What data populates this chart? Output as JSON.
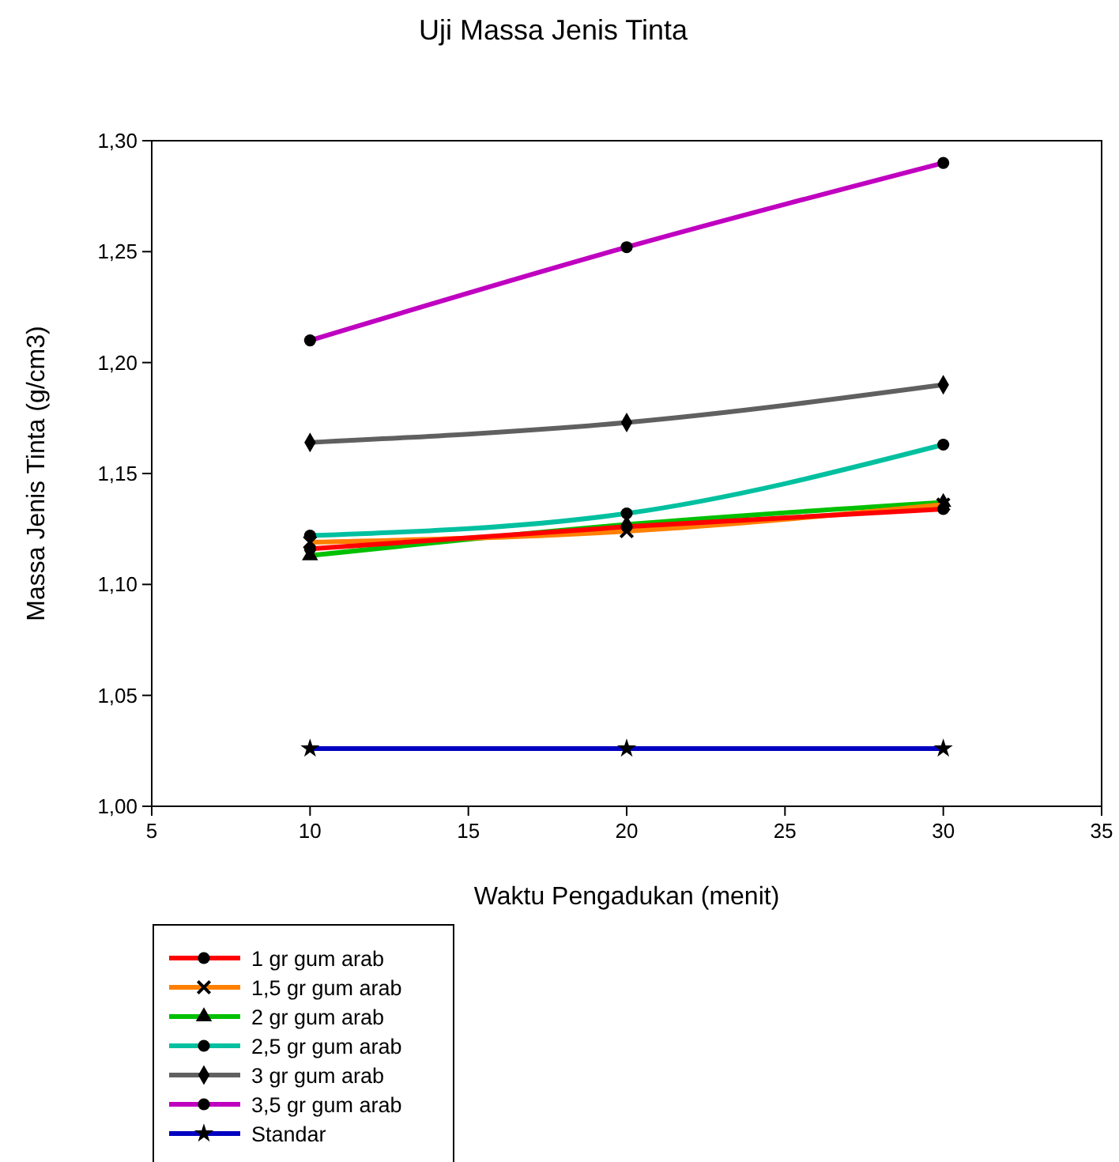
{
  "chart_data": {
    "type": "line",
    "title": "Uji Massa Jenis Tinta",
    "xlabel": "Waktu Pengadukan (menit)",
    "ylabel": "Massa Jenis Tinta (g/cm3)",
    "x": [
      10,
      20,
      30
    ],
    "xlim": [
      5,
      35
    ],
    "xticks": [
      5,
      10,
      15,
      20,
      25,
      30,
      35
    ],
    "ylim": [
      1.0,
      1.3
    ],
    "yticks": [
      {
        "value": 1.0,
        "label": "1,00"
      },
      {
        "value": 1.05,
        "label": "1,05"
      },
      {
        "value": 1.1,
        "label": "1,10"
      },
      {
        "value": 1.15,
        "label": "1,15"
      },
      {
        "value": 1.2,
        "label": "1,20"
      },
      {
        "value": 1.25,
        "label": "1,25"
      },
      {
        "value": 1.3,
        "label": "1,30"
      }
    ],
    "grid": false,
    "legend": "bottom left",
    "line_style": "solid",
    "series": [
      {
        "name": "1 gr gum arab",
        "color": "#ff0000",
        "marker": "circle",
        "values": [
          1.116,
          1.126,
          1.134
        ]
      },
      {
        "name": "1,5 gr gum arab",
        "color": "#ff8000",
        "marker": "cross",
        "values": [
          1.119,
          1.124,
          1.136
        ]
      },
      {
        "name": "2 gr gum arab",
        "color": "#00c000",
        "marker": "triangle",
        "values": [
          1.113,
          1.127,
          1.137
        ]
      },
      {
        "name": "2,5 gr gum arab",
        "color": "#00c0a0",
        "marker": "circle",
        "values": [
          1.122,
          1.132,
          1.163
        ]
      },
      {
        "name": "3 gr gum arab",
        "color": "#606060",
        "marker": "diamond",
        "values": [
          1.164,
          1.173,
          1.19
        ]
      },
      {
        "name": "3,5 gr gum arab",
        "color": "#c000c0",
        "marker": "circle",
        "values": [
          1.21,
          1.252,
          1.29
        ]
      },
      {
        "name": "Standar",
        "color": "#0000c0",
        "marker": "star",
        "values": [
          1.026,
          1.026,
          1.026
        ]
      }
    ]
  }
}
